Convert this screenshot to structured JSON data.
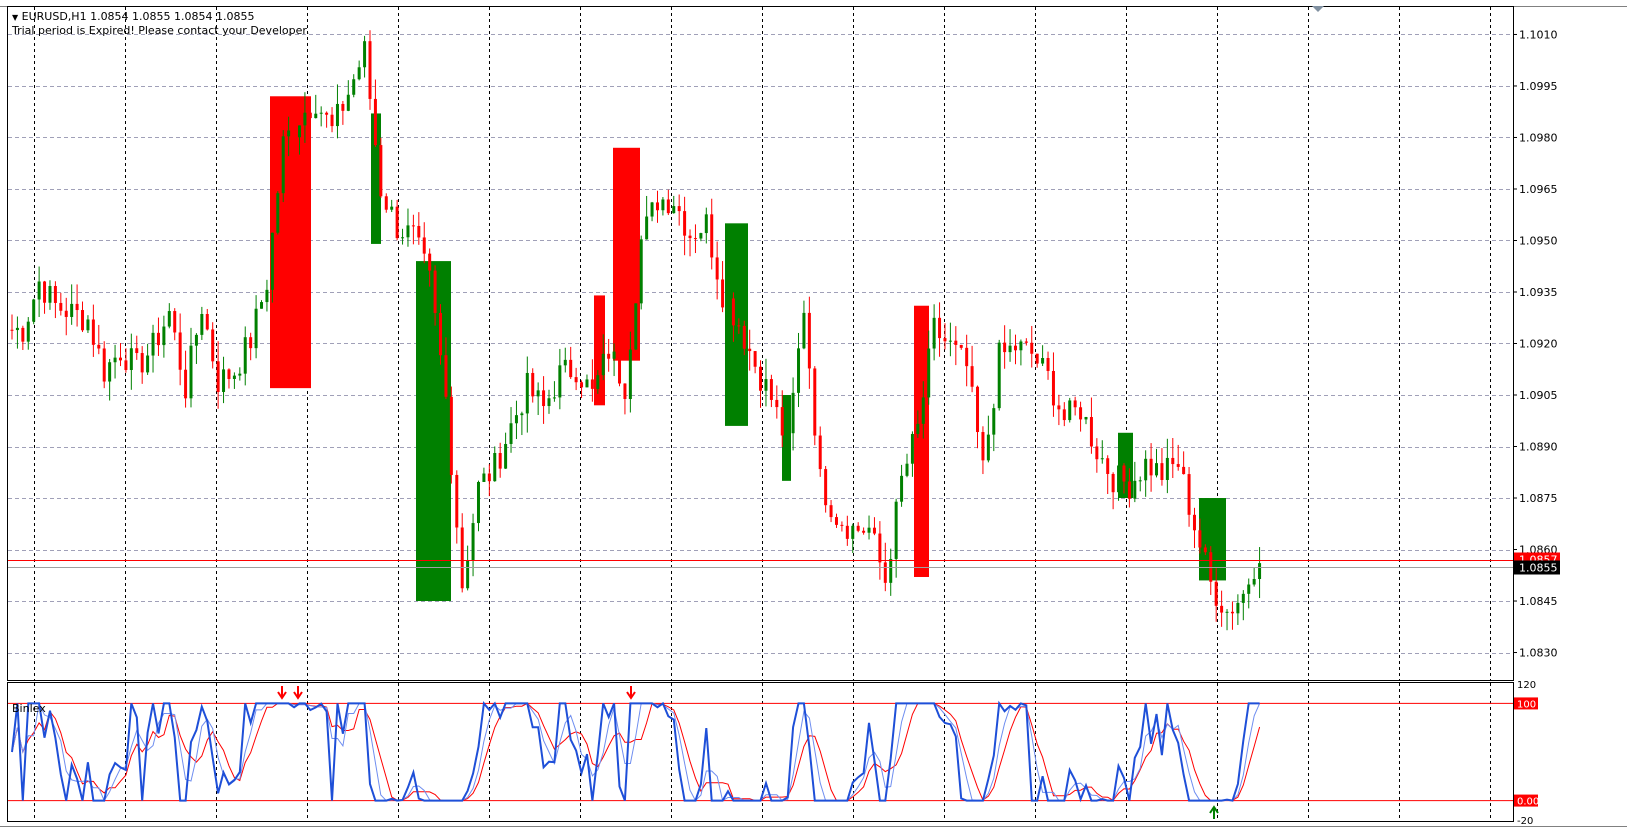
{
  "chart_header": {
    "symbol_line": "EURUSD,H1  1.0854 1.0855 1.0854 1.0855",
    "notice": "Trial period is Expired! Please contact your Developer."
  },
  "indicator": {
    "name": "Binlex",
    "scale_labels": [
      "120",
      "100",
      "0.00",
      "-20"
    ],
    "upper_level": 100,
    "lower_level": 0,
    "signal_arrows": [
      {
        "direction": "down",
        "color": "#ff0000"
      },
      {
        "direction": "down",
        "color": "#ff0000"
      },
      {
        "direction": "down",
        "color": "#ff0000"
      },
      {
        "direction": "up",
        "color": "#008000"
      }
    ]
  },
  "price_axis": {
    "labels": [
      "1.1010",
      "1.0995",
      "1.0980",
      "1.0965",
      "1.0950",
      "1.0935",
      "1.0920",
      "1.0905",
      "1.0890",
      "1.0875",
      "1.0860",
      "1.0845",
      "1.0830"
    ],
    "current_price": "1.0855",
    "ask_line_label": "1.0857"
  },
  "chart_data": {
    "type": "candlestick",
    "symbol": "EURUSD",
    "timeframe": "H1",
    "ylim": [
      1.0822,
      1.1018
    ],
    "grid": true,
    "close_approx": [
      1.0924,
      1.0938,
      1.0931,
      1.0929,
      1.0927,
      1.0912,
      1.0918,
      1.0913,
      1.0919,
      1.0929,
      1.0907,
      1.0931,
      1.0909,
      1.0912,
      1.0921,
      1.0938,
      1.0978,
      1.0986,
      1.0991,
      1.0982,
      1.0993,
      1.1005,
      1.0965,
      1.0954,
      1.0951,
      1.0938,
      1.0904,
      1.085,
      1.0878,
      1.0884,
      1.0896,
      1.0907,
      1.0901,
      1.0911,
      1.0913,
      1.0905,
      1.0918,
      1.0908,
      1.095,
      1.0962,
      1.0962,
      1.0952,
      1.0955,
      1.0935,
      1.0926,
      1.0914,
      1.0904,
      1.089,
      1.0931,
      1.088,
      1.087,
      1.0866,
      1.0866,
      1.0851,
      1.088,
      1.0895,
      1.0924,
      1.0919,
      1.0913,
      1.0883,
      1.0916,
      1.0919,
      1.0917,
      1.091,
      1.0898,
      1.0901,
      1.0889,
      1.0881,
      1.0879,
      1.0885,
      1.0882,
      1.0885,
      1.0867,
      1.085,
      1.0842,
      1.0847,
      1.086
    ],
    "highlight_boxes": [
      {
        "color": "#ff0000",
        "high": 1.0992,
        "low": 1.0907
      },
      {
        "color": "#008000",
        "high": 1.0987,
        "low": 1.0949
      },
      {
        "color": "#008000",
        "high": 1.0944,
        "low": 1.0845
      },
      {
        "color": "#ff0000",
        "high": 1.0934,
        "low": 1.0902
      },
      {
        "color": "#ff0000",
        "high": 1.0977,
        "low": 1.0915
      },
      {
        "color": "#008000",
        "high": 1.0955,
        "low": 1.0896
      },
      {
        "color": "#008000",
        "high": 1.0905,
        "low": 1.088
      },
      {
        "color": "#ff0000",
        "high": 1.0931,
        "low": 1.0852
      },
      {
        "color": "#008000",
        "high": 1.0894,
        "low": 1.0875
      },
      {
        "color": "#008000",
        "high": 1.0875,
        "low": 1.0851
      }
    ]
  },
  "colors": {
    "bull": "#008000",
    "bear": "#ff0000",
    "grid": "#a0a0b8",
    "indicator_main": "#1e4fd8",
    "indicator_signal": "#ff0000",
    "level_line": "#ff0000"
  }
}
